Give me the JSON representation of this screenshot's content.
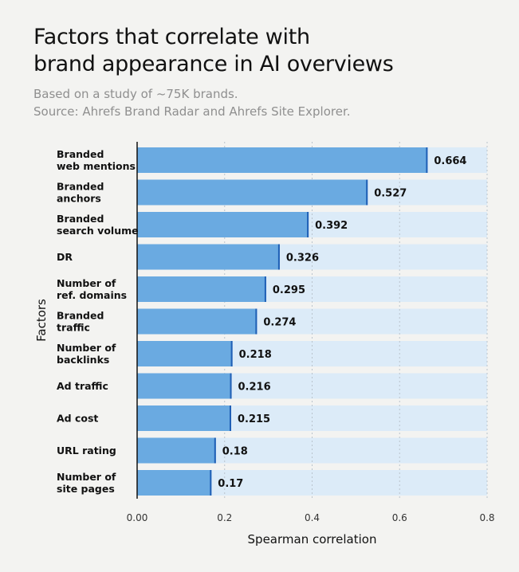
{
  "title_lines": [
    "Factors that correlate with",
    "brand appearance in AI overviews"
  ],
  "subtitle_lines": [
    "Based on a study of ~75K brands.",
    "Source: Ahrefs Brand Radar and Ahrefs Site Explorer."
  ],
  "colors": {
    "bar": "#6aaae1",
    "bar_end": "#1f5fb5",
    "track": "#dcebf8",
    "background": "#f3f3f1",
    "grid": "#b9c3cc",
    "text": "#111111"
  },
  "chart_data": {
    "type": "bar",
    "orientation": "horizontal",
    "categories": [
      [
        "Branded",
        "web mentions"
      ],
      [
        "Branded",
        "anchors"
      ],
      [
        "Branded",
        "search volume"
      ],
      [
        "DR"
      ],
      [
        "Number of",
        "ref. domains"
      ],
      [
        "Branded",
        "traffic"
      ],
      [
        "Number of",
        "backlinks"
      ],
      [
        "Ad traffic"
      ],
      [
        "Ad cost"
      ],
      [
        "URL rating"
      ],
      [
        "Number of",
        "site pages"
      ]
    ],
    "values": [
      0.664,
      0.527,
      0.392,
      0.326,
      0.295,
      0.274,
      0.218,
      0.216,
      0.215,
      0.18,
      0.17
    ],
    "value_labels": [
      "0.664",
      "0.527",
      "0.392",
      "0.326",
      "0.295",
      "0.274",
      "0.218",
      "0.216",
      "0.215",
      "0.18",
      "0.17"
    ],
    "xlabel": "Spearman correlation",
    "ylabel": "Factors",
    "xlim": [
      0,
      0.8
    ],
    "xticks": [
      0,
      0.2,
      0.4,
      0.6,
      0.8
    ],
    "xtick_labels": [
      "0.00",
      "0.2",
      "0.4",
      "0.6",
      "0.8"
    ],
    "grid": "vertical dotted"
  }
}
